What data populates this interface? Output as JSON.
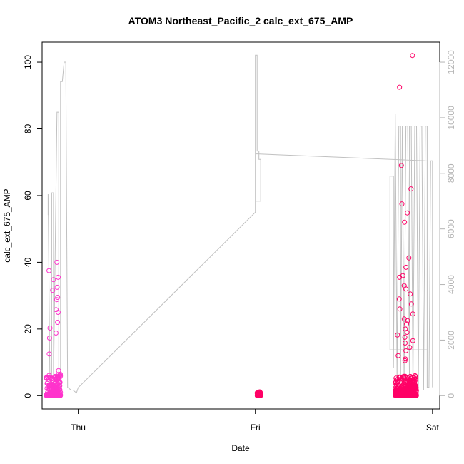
{
  "chart_data": {
    "type": "scatter",
    "title": "ATOM3 Northeast_Pacific_2 calc_ext_675_AMP",
    "xlabel": "Date",
    "ylabel": "calc_ext_675_AMP",
    "x_ticks": [
      {
        "label": "Thu",
        "value": 0
      },
      {
        "label": "Fri",
        "value": 1
      },
      {
        "label": "Sat",
        "value": 2
      }
    ],
    "xlim": [
      -0.204,
      2.041
    ],
    "ylim": [
      -4.0,
      106.0
    ],
    "y_ticks": [
      0,
      20,
      40,
      60,
      80,
      100
    ],
    "y2_ticks": [
      0,
      2000,
      4000,
      6000,
      8000,
      10000,
      12000
    ],
    "y2lim": [
      -480,
      12720
    ],
    "grid": false,
    "colors": {
      "scatter_early": "#ff33cc",
      "scatter_late": "#ff0066",
      "secondary_line": "#c0c0c0",
      "secondary_axis": "#b4b4b4"
    },
    "scatter_clusters": [
      {
        "x_center": -0.14,
        "x_spread": 0.08,
        "low_max": 6.5,
        "spike_values": [
          40.0,
          37.5,
          35.5,
          34.8,
          32.5,
          31.6,
          29.5,
          28.8,
          25.8,
          25.0,
          22.0,
          20.3,
          18.8,
          17.3,
          12.5,
          7.5
        ],
        "color": "scatter_early",
        "count": 180
      },
      {
        "x_center": 1.02,
        "x_spread": 0.02,
        "low_max": 1.2,
        "spike_values": [],
        "color": "scatter_late",
        "count": 60
      },
      {
        "x_center": 1.85,
        "x_spread": 0.12,
        "low_max": 6.0,
        "spike_values": [
          102.0,
          92.5,
          69.0,
          62.0,
          57.5,
          54.8,
          52.0,
          41.3,
          38.5,
          36.0,
          35.5,
          33.0,
          32.0,
          30.5,
          29.0,
          27.5,
          26.0,
          24.5,
          23.0,
          22.5,
          21.5,
          20.0,
          19.0,
          18.2,
          17.5,
          16.5,
          15.8,
          14.5,
          13.5,
          12.0,
          11.0,
          10.5
        ],
        "color": "scatter_late",
        "count": 320
      }
    ],
    "secondary_series": {
      "name": "",
      "x": [
        -0.17,
        -0.17,
        -0.16,
        -0.15,
        -0.15,
        -0.14,
        -0.14,
        -0.12,
        -0.11,
        -0.11,
        -0.1,
        -0.1,
        -0.09,
        -0.08,
        -0.07,
        -0.06,
        -0.06,
        -0.05,
        -0.05,
        -0.04,
        -0.03,
        -0.02,
        -0.02,
        -0.01,
        -0.01,
        0.0,
        0.0,
        1.0,
        1.0,
        1.01,
        1.01,
        1.02,
        1.02,
        1.03,
        1.03,
        1.0,
        1.0,
        1.97,
        1.97,
        1.76,
        1.76,
        1.78,
        1.78,
        1.79,
        1.8,
        1.81,
        1.82,
        1.82,
        1.83,
        1.84,
        1.85,
        1.86,
        1.87,
        1.87,
        1.88,
        1.89,
        1.9,
        1.91,
        1.92,
        1.93,
        1.94,
        1.95,
        1.96,
        1.97,
        1.97,
        1.98,
        1.99,
        2.0,
        2.0
      ],
      "values": [
        6500,
        7250,
        500,
        300,
        7300,
        7300,
        300,
        10200,
        10200,
        300,
        300,
        11300,
        11300,
        12000,
        12000,
        300,
        300,
        250,
        250,
        200,
        200,
        150,
        150,
        100,
        100,
        290,
        290,
        6600,
        12250,
        12250,
        8800,
        8800,
        8500,
        8500,
        7000,
        7000,
        8700,
        8450,
        1650,
        1650,
        7900,
        7900,
        1000,
        10150,
        600,
        9700,
        9700,
        500,
        9700,
        500,
        9700,
        9700,
        400,
        9700,
        9700,
        300,
        9700,
        9700,
        200,
        9700,
        9700,
        200,
        9700,
        9700,
        300,
        300,
        8450,
        8450,
        300
      ]
    }
  }
}
